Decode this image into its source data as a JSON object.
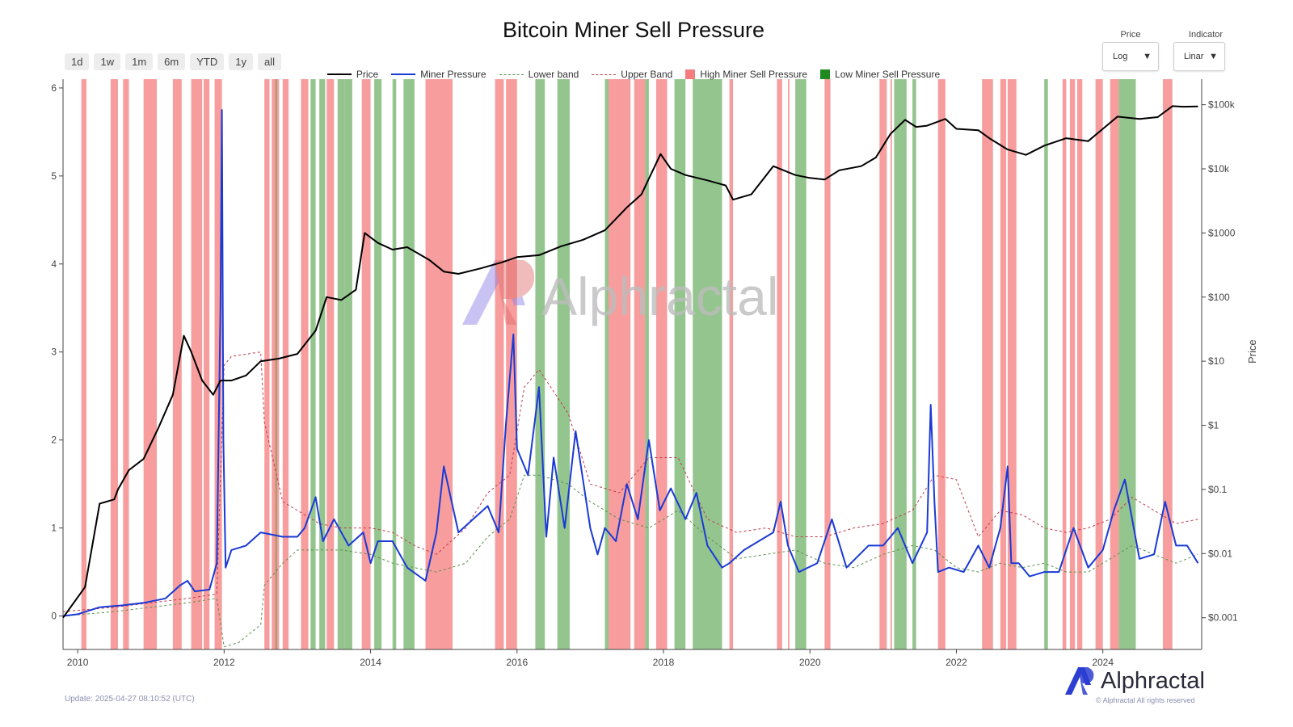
{
  "title": "Bitcoin Miner Sell Pressure",
  "range_buttons": [
    "1d",
    "1w",
    "1m",
    "6m",
    "YTD",
    "1y",
    "all"
  ],
  "dropdowns": {
    "price": {
      "label": "Price",
      "value": "Log"
    },
    "indicator": {
      "label": "Indicator",
      "value": "Linar"
    }
  },
  "legend": [
    {
      "label": "Price",
      "color": "#000000",
      "kind": "solid"
    },
    {
      "label": "Miner Pressure",
      "color": "#1a3ad6",
      "kind": "solid"
    },
    {
      "label": "Lower band",
      "color": "#5a8f4a",
      "kind": "dashed"
    },
    {
      "label": "Upper Band",
      "color": "#c0394a",
      "kind": "dashed"
    },
    {
      "label": "High Miner Sell Pressure",
      "color": "#f47c7c",
      "kind": "box"
    },
    {
      "label": "Low Miner Sell Pressure",
      "color": "#1f8a1f",
      "kind": "box"
    }
  ],
  "update_text": "Update: 2025-04-27 08:10:52 (UTC)",
  "brand": "Alphractal",
  "copyright": "© Alphractal All rights reserved",
  "watermark": "Alphractal",
  "right_axis_title": "Price",
  "chart_data": {
    "type": "line",
    "x_range": [
      2009.8,
      2025.35
    ],
    "x_ticks": [
      "2010",
      "2012",
      "2014",
      "2016",
      "2018",
      "2020",
      "2022",
      "2024"
    ],
    "y_left_range": [
      -0.38,
      6.1
    ],
    "y_left_ticks": [
      "0",
      "1",
      "2",
      "3",
      "4",
      "5",
      "6"
    ],
    "y_right_scale": "log",
    "y_right_range": [
      0.00032,
      250000
    ],
    "y_right_ticks": [
      {
        "v": 0.001,
        "label": "$0.001"
      },
      {
        "v": 0.01,
        "label": "$0.01"
      },
      {
        "v": 0.1,
        "label": "$0.1"
      },
      {
        "v": 1,
        "label": "$1"
      },
      {
        "v": 10,
        "label": "$10"
      },
      {
        "v": 100,
        "label": "$100"
      },
      {
        "v": 1000,
        "label": "$1000"
      },
      {
        "v": 10000,
        "label": "$10k"
      },
      {
        "v": 100000,
        "label": "$100k"
      }
    ],
    "high_sell_pressure_periods": [
      [
        2010.05,
        2010.12
      ],
      [
        2010.45,
        2010.55
      ],
      [
        2010.62,
        2010.7
      ],
      [
        2010.9,
        2011.08
      ],
      [
        2011.3,
        2011.42
      ],
      [
        2011.55,
        2011.7
      ],
      [
        2011.72,
        2011.8
      ],
      [
        2011.87,
        2011.97
      ],
      [
        2012.55,
        2012.62
      ],
      [
        2012.65,
        2012.75
      ],
      [
        2012.8,
        2012.88
      ],
      [
        2013.05,
        2013.15
      ],
      [
        2013.4,
        2013.5
      ],
      [
        2013.88,
        2014.0
      ],
      [
        2014.75,
        2015.12
      ],
      [
        2015.7,
        2015.82
      ],
      [
        2015.85,
        2016.0
      ],
      [
        2017.25,
        2017.55
      ],
      [
        2017.6,
        2017.75
      ],
      [
        2017.9,
        2018.05
      ],
      [
        2018.9,
        2018.95
      ],
      [
        2019.55,
        2019.62
      ],
      [
        2019.7,
        2019.72
      ],
      [
        2020.2,
        2020.28
      ],
      [
        2020.95,
        2021.05
      ],
      [
        2021.1,
        2021.12
      ],
      [
        2021.75,
        2021.85
      ],
      [
        2022.35,
        2022.5
      ],
      [
        2022.6,
        2022.68
      ],
      [
        2022.7,
        2022.82
      ],
      [
        2023.45,
        2023.5
      ],
      [
        2023.55,
        2023.62
      ],
      [
        2023.65,
        2023.72
      ],
      [
        2023.9,
        2024.0
      ],
      [
        2024.1,
        2024.22
      ],
      [
        2024.82,
        2024.95
      ]
    ],
    "low_sell_pressure_periods": [
      [
        2012.7,
        2012.72
      ],
      [
        2013.18,
        2013.25
      ],
      [
        2013.3,
        2013.38
      ],
      [
        2013.55,
        2013.65
      ],
      [
        2013.65,
        2013.75
      ],
      [
        2014.05,
        2014.15
      ],
      [
        2014.3,
        2014.35
      ],
      [
        2014.45,
        2014.6
      ],
      [
        2016.25,
        2016.38
      ],
      [
        2016.55,
        2016.72
      ],
      [
        2017.2,
        2017.25
      ],
      [
        2017.75,
        2017.8
      ],
      [
        2018.15,
        2018.3
      ],
      [
        2018.4,
        2018.8
      ],
      [
        2019.8,
        2019.95
      ],
      [
        2021.15,
        2021.32
      ],
      [
        2021.4,
        2021.45
      ],
      [
        2023.2,
        2023.25
      ],
      [
        2024.22,
        2024.45
      ]
    ],
    "series": [
      {
        "name": "Price",
        "color": "#000000",
        "axis": "right",
        "x": [
          2009.8,
          2010.1,
          2010.3,
          2010.5,
          2010.55,
          2010.7,
          2010.9,
          2011.1,
          2011.3,
          2011.45,
          2011.55,
          2011.7,
          2011.85,
          2011.95,
          2012.1,
          2012.3,
          2012.5,
          2012.75,
          2013.0,
          2013.25,
          2013.4,
          2013.6,
          2013.8,
          2013.92,
          2014.1,
          2014.3,
          2014.5,
          2014.8,
          2015.0,
          2015.2,
          2015.5,
          2015.8,
          2016.0,
          2016.3,
          2016.6,
          2016.9,
          2017.2,
          2017.5,
          2017.7,
          2017.96,
          2018.1,
          2018.3,
          2018.6,
          2018.85,
          2018.95,
          2019.2,
          2019.5,
          2019.8,
          2020.0,
          2020.2,
          2020.4,
          2020.7,
          2020.9,
          2021.1,
          2021.3,
          2021.45,
          2021.6,
          2021.85,
          2022.0,
          2022.3,
          2022.45,
          2022.7,
          2022.95,
          2023.2,
          2023.5,
          2023.8,
          2024.0,
          2024.2,
          2024.5,
          2024.75,
          2024.95,
          2025.1,
          2025.3
        ],
        "y": [
          0.001,
          0.003,
          0.06,
          0.07,
          0.1,
          0.2,
          0.3,
          0.9,
          3,
          25,
          14,
          5,
          3,
          5,
          5,
          6,
          10,
          11,
          13,
          30,
          100,
          90,
          130,
          1000,
          700,
          550,
          600,
          380,
          250,
          230,
          280,
          350,
          420,
          450,
          620,
          780,
          1100,
          2500,
          4000,
          17000,
          10000,
          8000,
          6600,
          5500,
          3300,
          4000,
          11000,
          8000,
          7200,
          6800,
          9500,
          11000,
          15000,
          35000,
          58000,
          45000,
          47000,
          60000,
          42000,
          40000,
          30000,
          20000,
          16500,
          23000,
          30000,
          27000,
          42000,
          65000,
          60000,
          64000,
          95000,
          93000,
          94000
        ]
      },
      {
        "name": "Miner Pressure",
        "color": "#1a3ad6",
        "axis": "left",
        "x": [
          2009.8,
          2010.0,
          2010.3,
          2010.6,
          2010.9,
          2011.2,
          2011.4,
          2011.5,
          2011.6,
          2011.8,
          2011.9,
          2011.95,
          2011.97,
          2011.99,
          2012.02,
          2012.1,
          2012.3,
          2012.5,
          2012.8,
          2013.0,
          2013.1,
          2013.25,
          2013.35,
          2013.5,
          2013.7,
          2013.9,
          2014.0,
          2014.1,
          2014.3,
          2014.5,
          2014.75,
          2014.9,
          2015.0,
          2015.2,
          2015.4,
          2015.6,
          2015.75,
          2015.85,
          2015.95,
          2016.0,
          2016.15,
          2016.3,
          2016.4,
          2016.5,
          2016.65,
          2016.8,
          2017.0,
          2017.1,
          2017.2,
          2017.35,
          2017.5,
          2017.65,
          2017.8,
          2017.95,
          2018.1,
          2018.3,
          2018.45,
          2018.6,
          2018.8,
          2018.9,
          2019.1,
          2019.3,
          2019.5,
          2019.6,
          2019.7,
          2019.85,
          2020.1,
          2020.3,
          2020.5,
          2020.8,
          2021.0,
          2021.2,
          2021.4,
          2021.6,
          2021.65,
          2021.7,
          2021.75,
          2021.9,
          2022.1,
          2022.3,
          2022.45,
          2022.6,
          2022.7,
          2022.75,
          2022.85,
          2023.0,
          2023.2,
          2023.4,
          2023.6,
          2023.8,
          2024.0,
          2024.15,
          2024.3,
          2024.5,
          2024.7,
          2024.85,
          2025.0,
          2025.15,
          2025.3
        ],
        "y": [
          0.0,
          0.02,
          0.1,
          0.12,
          0.15,
          0.2,
          0.35,
          0.4,
          0.28,
          0.3,
          0.6,
          3.5,
          5.75,
          2.0,
          0.55,
          0.75,
          0.8,
          0.95,
          0.9,
          0.9,
          1.0,
          1.35,
          0.85,
          1.1,
          0.8,
          0.95,
          0.6,
          0.85,
          0.85,
          0.55,
          0.4,
          0.95,
          1.7,
          0.95,
          1.1,
          1.25,
          0.95,
          2.2,
          3.2,
          1.9,
          1.6,
          2.6,
          0.9,
          1.8,
          1.0,
          2.1,
          1.0,
          0.7,
          1.0,
          0.85,
          1.5,
          1.1,
          2.0,
          1.2,
          1.45,
          1.1,
          1.4,
          0.8,
          0.55,
          0.6,
          0.75,
          0.85,
          0.95,
          1.3,
          0.8,
          0.5,
          0.6,
          1.1,
          0.55,
          0.8,
          0.8,
          1.0,
          0.6,
          0.95,
          2.4,
          1.3,
          0.5,
          0.55,
          0.5,
          0.8,
          0.55,
          1.0,
          1.7,
          0.6,
          0.6,
          0.45,
          0.5,
          0.5,
          1.0,
          0.55,
          0.75,
          1.2,
          1.55,
          0.65,
          0.7,
          1.3,
          0.8,
          0.8,
          0.6
        ]
      },
      {
        "name": "Lower band",
        "color": "#5a8f4a",
        "axis": "left",
        "dash": "3,3",
        "x": [
          2009.8,
          2010.5,
          2011.0,
          2011.5,
          2011.9,
          2012.0,
          2012.2,
          2012.5,
          2012.55,
          2012.8,
          2013.0,
          2013.3,
          2013.6,
          2014.0,
          2014.3,
          2014.6,
          2014.9,
          2015.3,
          2015.6,
          2015.9,
          2016.1,
          2016.3,
          2016.7,
          2017.0,
          2017.4,
          2017.8,
          2018.2,
          2018.6,
          2019.0,
          2019.4,
          2019.8,
          2020.2,
          2020.6,
          2021.0,
          2021.4,
          2021.7,
          2022.0,
          2022.3,
          2022.6,
          2022.9,
          2023.2,
          2023.5,
          2023.8,
          2024.1,
          2024.4,
          2024.7,
          2025.0,
          2025.3
        ],
        "y": [
          0.0,
          0.05,
          0.1,
          0.15,
          0.2,
          -0.35,
          -0.3,
          -0.1,
          0.35,
          0.6,
          0.75,
          0.75,
          0.75,
          0.7,
          0.6,
          0.55,
          0.5,
          0.6,
          0.9,
          1.1,
          1.6,
          1.6,
          1.5,
          1.3,
          1.1,
          1.0,
          1.2,
          0.9,
          0.65,
          0.7,
          0.75,
          0.6,
          0.55,
          0.7,
          0.8,
          0.75,
          0.55,
          0.5,
          0.6,
          0.55,
          0.6,
          0.5,
          0.5,
          0.65,
          0.8,
          0.7,
          0.6,
          0.7
        ]
      },
      {
        "name": "Upper Band",
        "color": "#c0394a",
        "axis": "left",
        "dash": "3,3",
        "x": [
          2009.8,
          2010.5,
          2011.0,
          2011.5,
          2011.9,
          2012.0,
          2012.1,
          2012.5,
          2012.55,
          2012.8,
          2013.0,
          2013.3,
          2013.6,
          2014.0,
          2014.3,
          2014.6,
          2014.9,
          2015.3,
          2015.6,
          2015.9,
          2016.1,
          2016.3,
          2016.7,
          2017.0,
          2017.4,
          2017.8,
          2018.2,
          2018.6,
          2019.0,
          2019.4,
          2019.8,
          2020.2,
          2020.6,
          2021.0,
          2021.4,
          2021.7,
          2022.0,
          2022.3,
          2022.6,
          2022.9,
          2023.2,
          2023.5,
          2023.8,
          2024.1,
          2024.4,
          2024.7,
          2025.0,
          2025.3
        ],
        "y": [
          0.05,
          0.1,
          0.15,
          0.2,
          0.25,
          2.85,
          2.95,
          3.0,
          2.2,
          1.3,
          1.2,
          1.05,
          1.0,
          1.0,
          0.95,
          0.8,
          0.7,
          1.0,
          1.4,
          1.6,
          2.6,
          2.8,
          2.3,
          1.5,
          1.4,
          1.8,
          1.8,
          1.1,
          0.95,
          1.0,
          0.9,
          0.9,
          1.0,
          1.05,
          1.2,
          1.6,
          1.55,
          0.9,
          1.2,
          1.15,
          1.0,
          0.95,
          1.0,
          1.1,
          1.35,
          1.2,
          1.05,
          1.1
        ]
      }
    ]
  }
}
